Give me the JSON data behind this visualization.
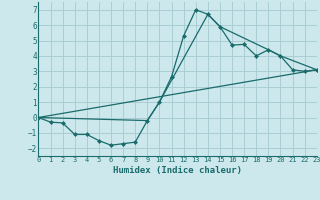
{
  "xlabel": "Humidex (Indice chaleur)",
  "bg_color": "#cce8ec",
  "grid_color": "#aacdd4",
  "line_color": "#1a6b6b",
  "line1_x": [
    0,
    1,
    2,
    3,
    4,
    5,
    6,
    7,
    8,
    9,
    10,
    11,
    12,
    13,
    14,
    15,
    16,
    17,
    18,
    19,
    20,
    21,
    22,
    23
  ],
  "line1_y": [
    0,
    -0.3,
    -0.35,
    -1.1,
    -1.1,
    -1.5,
    -1.8,
    -1.7,
    -1.6,
    -0.2,
    1.0,
    2.65,
    5.3,
    7.0,
    6.7,
    5.9,
    4.7,
    4.75,
    4.0,
    4.4,
    4.0,
    3.1,
    3.0,
    3.1
  ],
  "line2_x": [
    0,
    9,
    10,
    14,
    15,
    19,
    20,
    23
  ],
  "line2_y": [
    0,
    -0.2,
    1.0,
    6.7,
    5.9,
    4.4,
    4.0,
    3.1
  ],
  "line3_x": [
    0,
    23
  ],
  "line3_y": [
    0,
    3.1
  ],
  "xlim": [
    0,
    23
  ],
  "ylim": [
    -2.5,
    7.5
  ],
  "xticks": [
    0,
    1,
    2,
    3,
    4,
    5,
    6,
    7,
    8,
    9,
    10,
    11,
    12,
    13,
    14,
    15,
    16,
    17,
    18,
    19,
    20,
    21,
    22,
    23
  ],
  "yticks": [
    -2,
    -1,
    0,
    1,
    2,
    3,
    4,
    5,
    6,
    7
  ]
}
